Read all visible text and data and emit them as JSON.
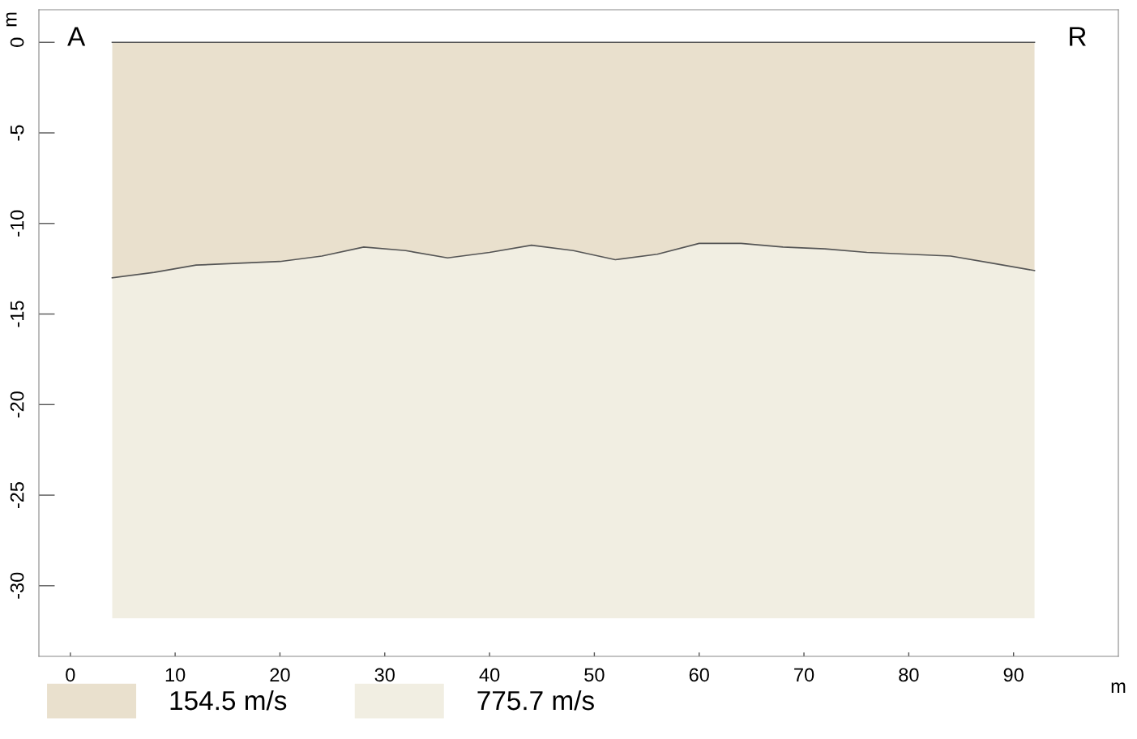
{
  "chart_data": {
    "type": "area",
    "stacked": true,
    "x": [
      4,
      8,
      12,
      16,
      20,
      24,
      28,
      32,
      36,
      40,
      44,
      48,
      52,
      56,
      60,
      64,
      68,
      72,
      76,
      80,
      84,
      88,
      92
    ],
    "series": [
      {
        "name": "154.5 m/s",
        "color": "#e9e0cd",
        "values": [
          -13.0,
          -12.7,
          -12.3,
          -12.2,
          -12.1,
          -11.8,
          -11.3,
          -11.5,
          -11.9,
          -11.6,
          -11.2,
          -11.5,
          -12.0,
          -11.7,
          -11.1,
          -11.1,
          -11.3,
          -11.4,
          -11.6,
          -11.7,
          -11.8,
          -12.2,
          -12.6
        ]
      },
      {
        "name": "775.7 m/s",
        "color": "#f1eee2",
        "values": [
          -18.8,
          -19.1,
          -19.5,
          -19.6,
          -19.7,
          -20.0,
          -20.5,
          -20.3,
          -19.9,
          -20.2,
          -20.6,
          -20.3,
          -19.8,
          -20.1,
          -20.7,
          -20.7,
          -20.5,
          -20.4,
          -20.2,
          -20.1,
          -20.0,
          -19.6,
          -19.2
        ]
      }
    ],
    "xlabel": "m",
    "ylabel": "m",
    "annotations": [
      "A",
      "R"
    ],
    "ref_lines": [
      {
        "axis": "y",
        "value": 0,
        "color": "#555555"
      }
    ],
    "xlim": [
      -3,
      100
    ],
    "ylim": [
      -33.9,
      1.8
    ],
    "xticks": [
      0,
      10,
      20,
      30,
      40,
      50,
      60,
      70,
      80,
      90
    ],
    "yticks": [
      0,
      -5,
      -10,
      -15,
      -20,
      -25,
      -30
    ],
    "grid": false,
    "legend": "bottom"
  }
}
